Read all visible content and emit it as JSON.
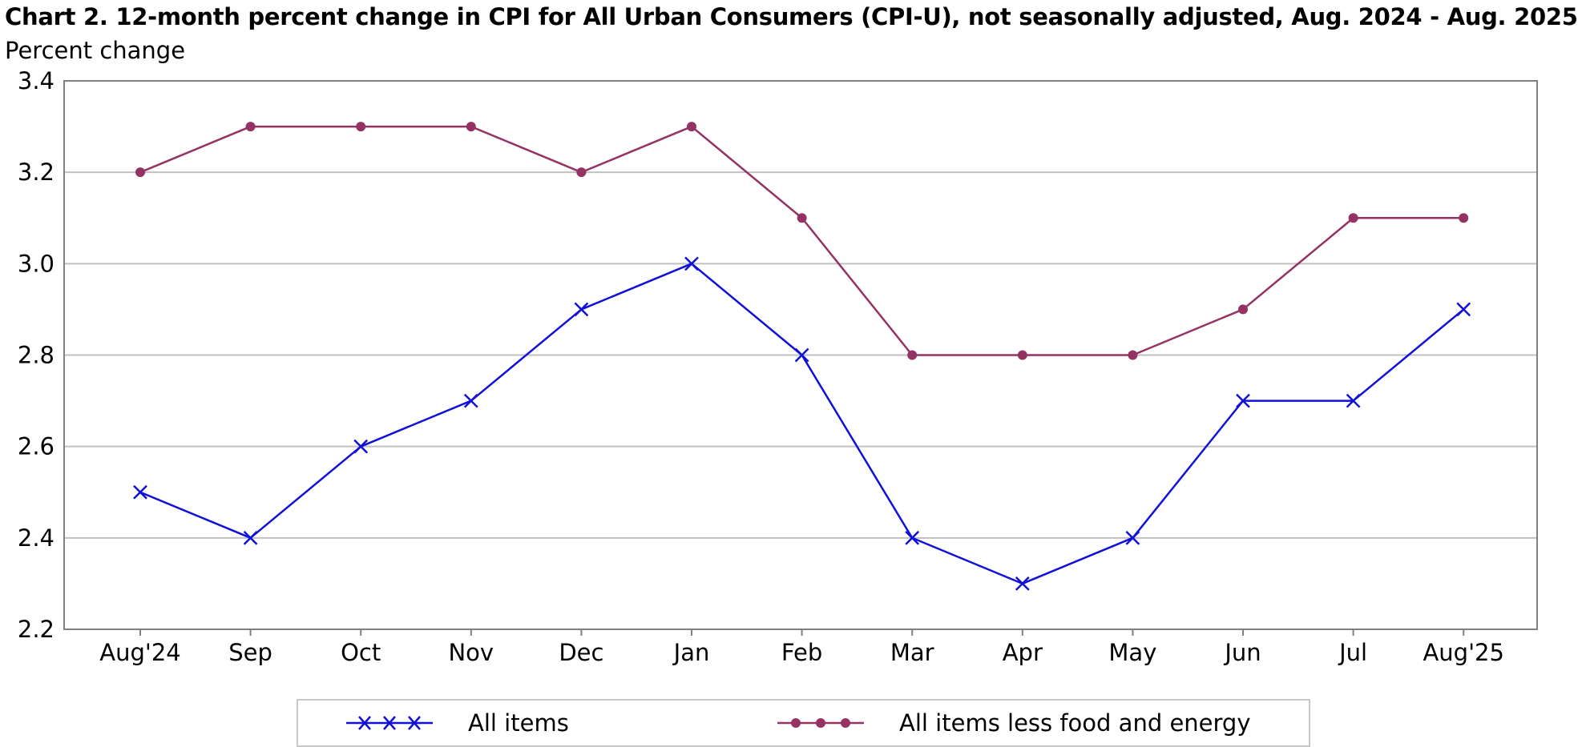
{
  "chart_data": {
    "type": "line",
    "title": "Chart 2. 12-month percent change in CPI for All Urban Consumers (CPI-U), not seasonally adjusted, Aug. 2024 - Aug. 2025",
    "subtitle": "Percent change",
    "xlabel": "",
    "ylabel": "",
    "categories": [
      "Aug'24",
      "Sep",
      "Oct",
      "Nov",
      "Dec",
      "Jan",
      "Feb",
      "Mar",
      "Apr",
      "May",
      "Jun",
      "Jul",
      "Aug'25"
    ],
    "ylim": [
      2.2,
      3.4
    ],
    "yticks": [
      "2.2",
      "2.4",
      "2.6",
      "2.8",
      "3.0",
      "3.2",
      "3.4"
    ],
    "grid": true,
    "legend_position": "bottom",
    "series": [
      {
        "name": "All items",
        "color": "#1010d8",
        "marker": "x",
        "values": [
          2.5,
          2.4,
          2.6,
          2.7,
          2.9,
          3.0,
          2.8,
          2.4,
          2.3,
          2.4,
          2.7,
          2.7,
          2.9
        ]
      },
      {
        "name": "All items less food and energy",
        "color": "#953264",
        "marker": "circle",
        "values": [
          3.2,
          3.3,
          3.3,
          3.3,
          3.2,
          3.3,
          3.1,
          2.8,
          2.8,
          2.8,
          2.9,
          3.1,
          3.1
        ]
      }
    ]
  }
}
